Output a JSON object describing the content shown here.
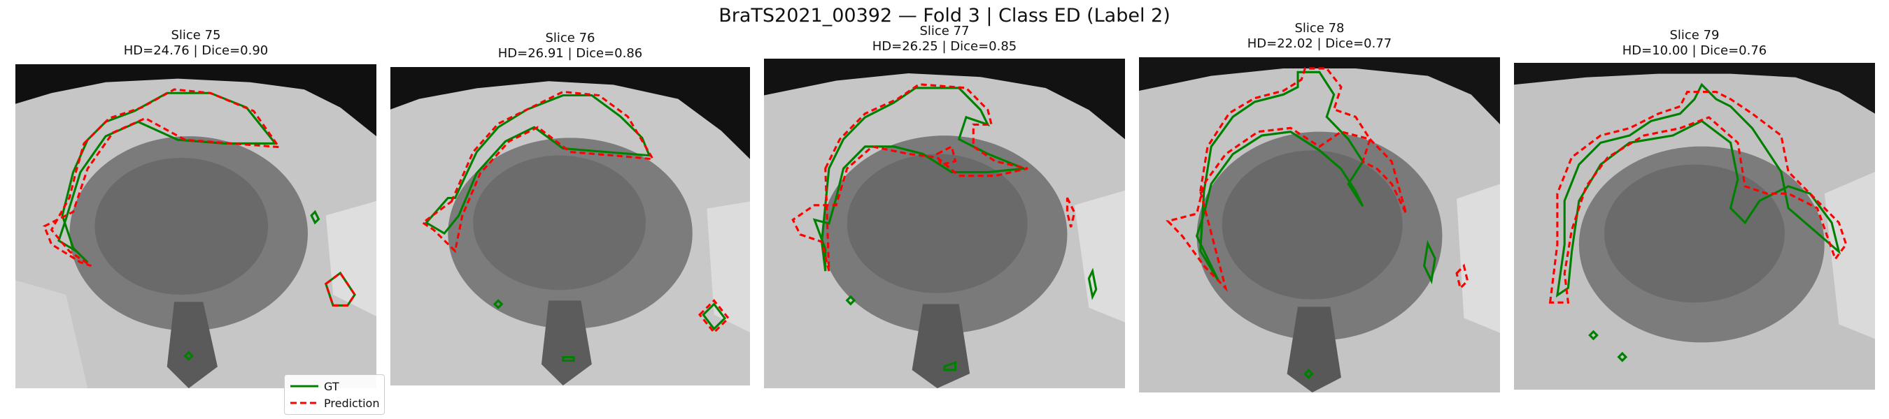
{
  "figure": {
    "suptitle": "BraTS2021_00392 — Fold 3 | Class ED (Label 2)"
  },
  "panels": [
    {
      "slice": "Slice 75",
      "metrics": "HD=24.76 | Dice=0.90"
    },
    {
      "slice": "Slice 76",
      "metrics": "HD=26.91 | Dice=0.86"
    },
    {
      "slice": "Slice 77",
      "metrics": "HD=26.25 | Dice=0.85"
    },
    {
      "slice": "Slice 78",
      "metrics": "HD=22.02 | Dice=0.77"
    },
    {
      "slice": "Slice 79",
      "metrics": "HD=10.00 | Dice=0.76"
    }
  ],
  "legend": {
    "gt_label": "GT",
    "pred_label": "Prediction",
    "gt_color": "#008000",
    "pred_color": "#ff0000"
  }
}
